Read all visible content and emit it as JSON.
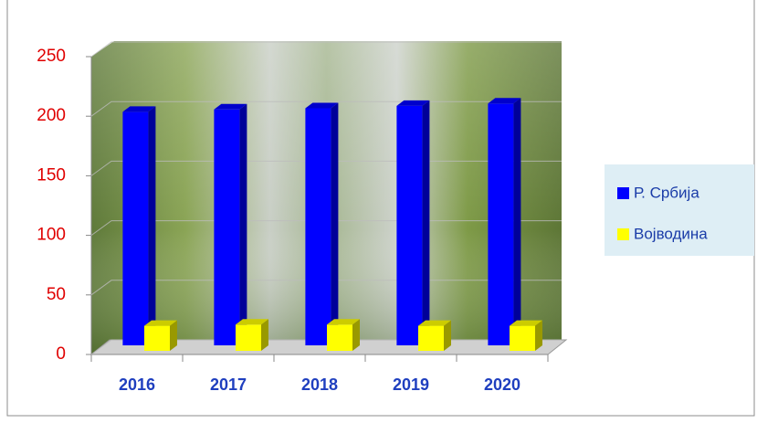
{
  "chart_data": {
    "type": "bar3d",
    "categories": [
      "2016",
      "2017",
      "2018",
      "2019",
      "2020"
    ],
    "series": [
      {
        "name": "Р. Србија",
        "color": "#0000ff",
        "values": [
          196,
          198,
          199,
          201,
          203
        ]
      },
      {
        "name": "Војводина",
        "color": "#ffff00",
        "values": [
          21,
          22,
          22,
          21,
          21
        ]
      }
    ],
    "ylim": [
      0,
      250
    ],
    "yticks": [
      0,
      50,
      100,
      150,
      200,
      250
    ],
    "grid": true,
    "legend": "right"
  }
}
